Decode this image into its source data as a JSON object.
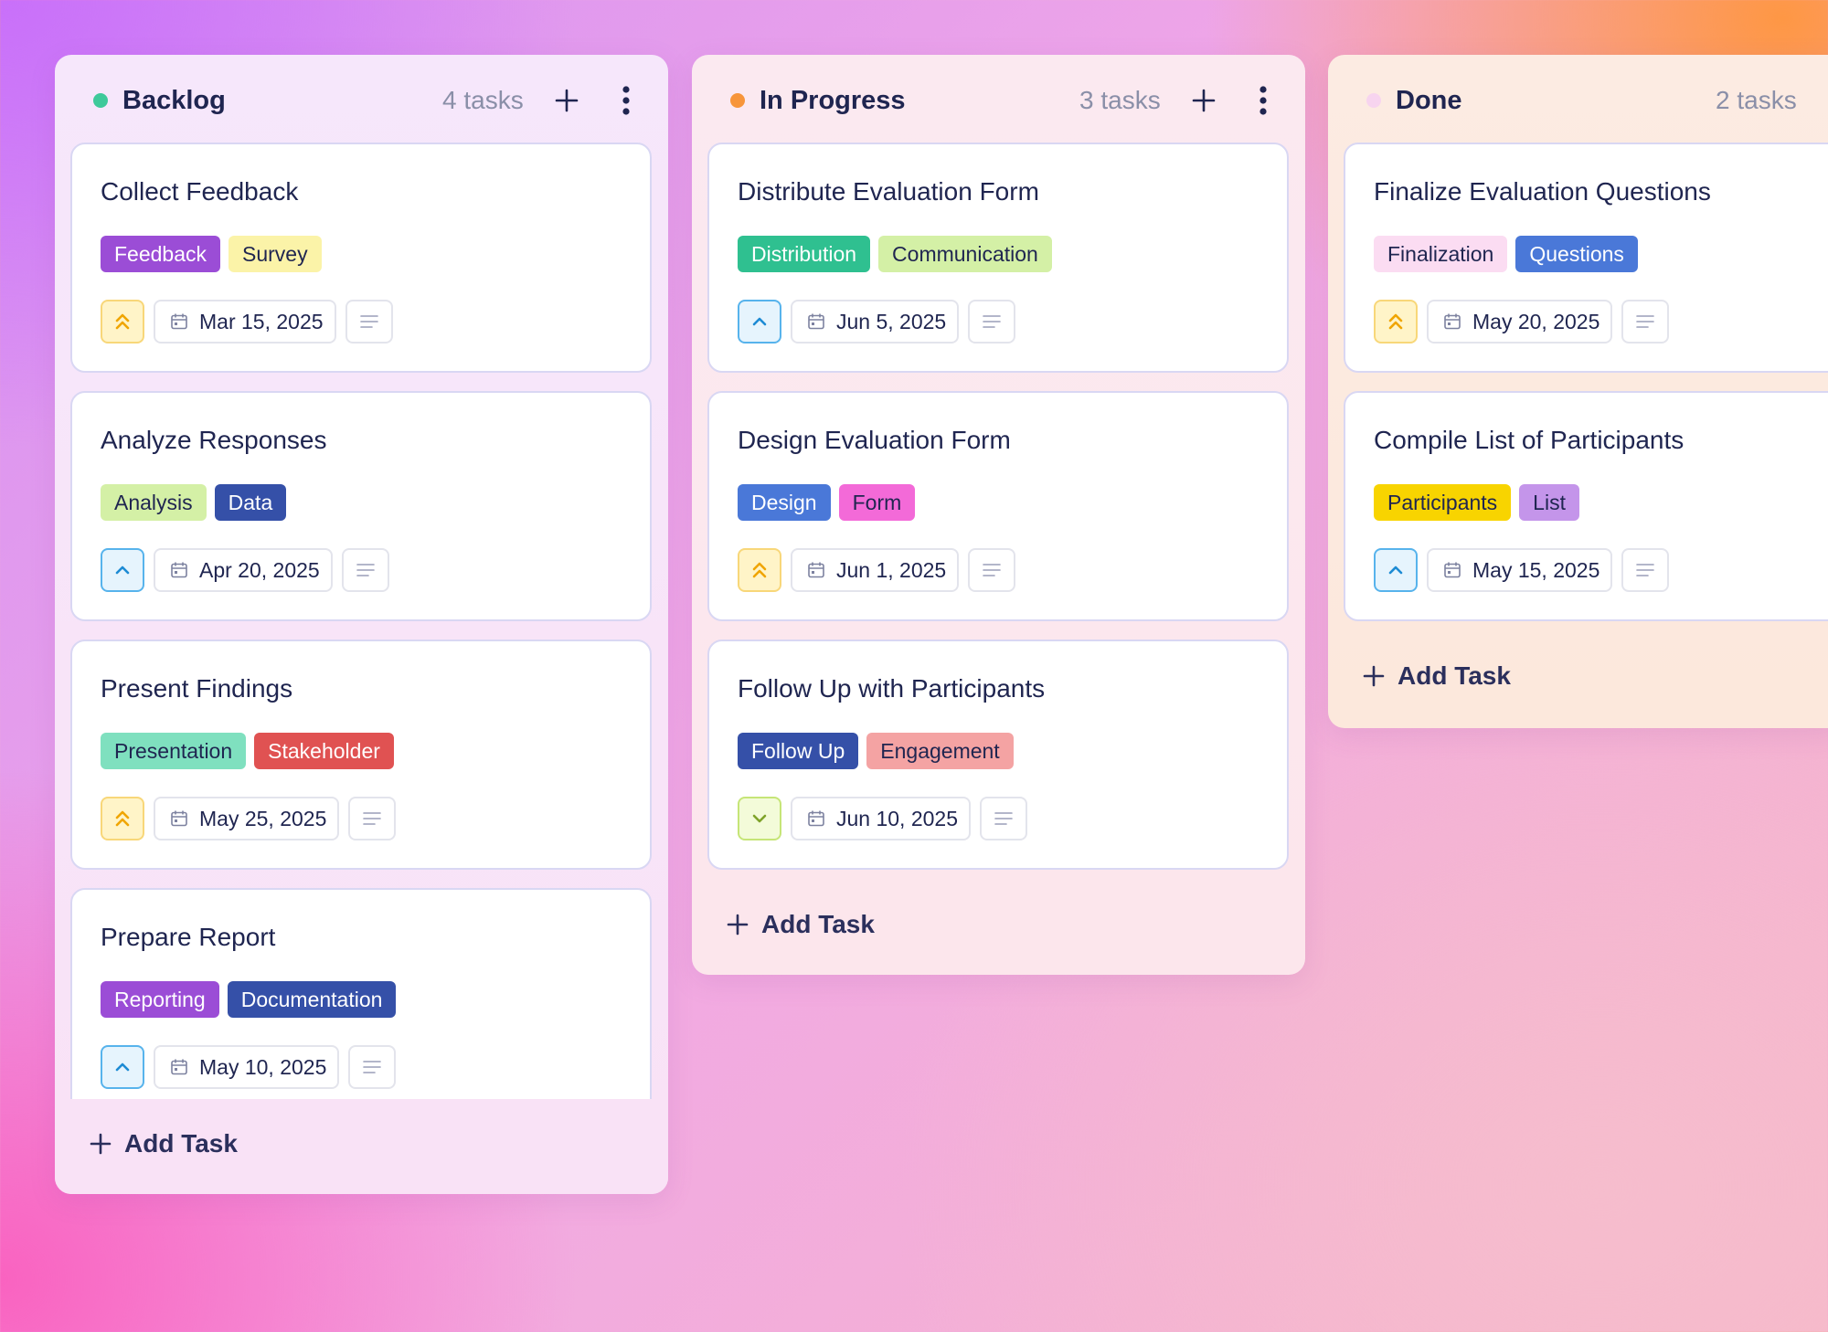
{
  "colors": {
    "backlog_dot": "#3ec99a",
    "in_progress_dot": "#f7953a",
    "done_dot": "#f7d4ef"
  },
  "columns": [
    {
      "title": "Backlog",
      "count": "4 tasks",
      "add_task_label": "Add Task",
      "cards": [
        {
          "title": "Collect Feedback",
          "tags": [
            "Feedback",
            "Survey"
          ],
          "priority": "high",
          "date": "Mar 15, 2025"
        },
        {
          "title": "Analyze Responses",
          "tags": [
            "Analysis",
            "Data"
          ],
          "priority": "medium",
          "date": "Apr 20, 2025"
        },
        {
          "title": "Present Findings",
          "tags": [
            "Presentation",
            "Stakeholder"
          ],
          "priority": "high",
          "date": "May 25, 2025"
        },
        {
          "title": "Prepare Report",
          "tags": [
            "Reporting",
            "Documentation"
          ],
          "priority": "medium",
          "date": "May 10, 2025"
        }
      ]
    },
    {
      "title": "In Progress",
      "count": "3 tasks",
      "add_task_label": "Add Task",
      "cards": [
        {
          "title": "Distribute Evaluation Form",
          "tags": [
            "Distribution",
            "Communication"
          ],
          "priority": "medium",
          "date": "Jun 5, 2025"
        },
        {
          "title": "Design Evaluation Form",
          "tags": [
            "Design",
            "Form"
          ],
          "priority": "high",
          "date": "Jun 1, 2025"
        },
        {
          "title": "Follow Up with Participants",
          "tags": [
            "Follow Up",
            "Engagement"
          ],
          "priority": "low",
          "date": "Jun 10, 2025"
        }
      ]
    },
    {
      "title": "Done",
      "count": "2 tasks",
      "add_task_label": "Add Task",
      "cards": [
        {
          "title": "Finalize Evaluation Questions",
          "tags": [
            "Finalization",
            "Questions"
          ],
          "priority": "high",
          "date": "May 20, 2025"
        },
        {
          "title": "Compile List of Participants",
          "tags": [
            "Participants",
            "List"
          ],
          "priority": "medium",
          "date": "May 15, 2025"
        }
      ]
    }
  ],
  "icons": {
    "priority_high": "double-chevron-up-icon",
    "priority_medium": "chevron-up-icon",
    "priority_low": "chevron-down-icon",
    "date": "calendar-icon",
    "notes": "notes-lines-icon",
    "add": "plus-icon",
    "menu": "kebab-menu-icon"
  }
}
